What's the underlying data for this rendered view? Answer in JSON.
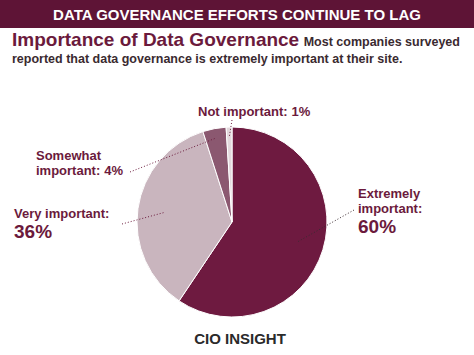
{
  "header": "DATA GOVERNANCE EFFORTS CONTINUE TO LAG",
  "logo": "CIO INSIGHT",
  "chart_data": {
    "type": "pie",
    "title": "Importance of Data Governance",
    "subtitle": "Most companies surveyed reported that data governance is extremely important at their site.",
    "categories": [
      "Extremely important:",
      "Very important:",
      "Somewhat important:",
      "Not important:"
    ],
    "values": [
      60,
      36,
      4,
      1
    ],
    "value_labels": [
      "60%",
      "36%",
      "4%",
      "1%"
    ],
    "colors": [
      "#6e1a40",
      "#c9b5be",
      "#8b5870",
      "#e2d8dc"
    ],
    "data_labels": true
  }
}
